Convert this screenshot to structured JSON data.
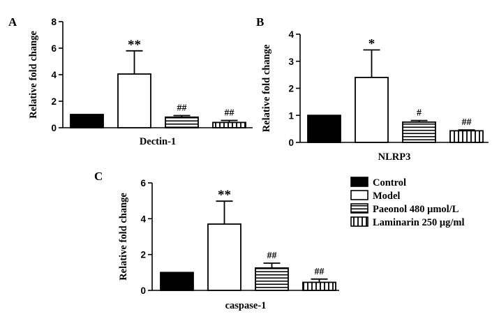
{
  "legend": [
    {
      "label": "Control",
      "pattern": "solid"
    },
    {
      "label": "Model",
      "pattern": "open"
    },
    {
      "label": "Paeonol 480 μmol/L",
      "pattern": "hlines"
    },
    {
      "label": "Laminarin 250 μg/ml",
      "pattern": "vlines"
    }
  ],
  "chart_data": [
    {
      "type": "bar",
      "panel": "A",
      "xlabel": "Dectin-1",
      "ylabel": "Relative fold change",
      "ylim": [
        0,
        8
      ],
      "yticks": [
        "0",
        "2",
        "4",
        "6",
        "8"
      ],
      "categories": [
        "Control",
        "Model",
        "Paeonol 480 μmol/L",
        "Laminarin 250 μg/ml"
      ],
      "values": [
        1.0,
        4.05,
        0.8,
        0.4
      ],
      "errors": [
        0,
        1.75,
        0.12,
        0.15
      ],
      "annotations": [
        "",
        "**",
        "##",
        "##"
      ]
    },
    {
      "type": "bar",
      "panel": "B",
      "xlabel": "NLRP3",
      "ylabel": "Relative fold change",
      "ylim": [
        0,
        4
      ],
      "yticks": [
        "0",
        "1",
        "2",
        "3",
        "4"
      ],
      "categories": [
        "Control",
        "Model",
        "Paeonol 480 μmol/L",
        "Laminarin 250 μg/ml"
      ],
      "values": [
        1.0,
        2.4,
        0.75,
        0.43
      ],
      "errors": [
        0,
        1.02,
        0.06,
        0.03
      ],
      "annotations": [
        "",
        "*",
        "#",
        "##"
      ]
    },
    {
      "type": "bar",
      "panel": "C",
      "xlabel": "caspase-1",
      "ylabel": "Relative fold change",
      "ylim": [
        0,
        6
      ],
      "yticks": [
        "0",
        "2",
        "4",
        "6"
      ],
      "categories": [
        "Control",
        "Model",
        "Paeonol 480 μmol/L",
        "Laminarin 250 μg/ml"
      ],
      "values": [
        1.0,
        3.7,
        1.25,
        0.45
      ],
      "errors": [
        0,
        1.28,
        0.27,
        0.18
      ],
      "annotations": [
        "",
        "**",
        "##",
        "##"
      ]
    }
  ]
}
